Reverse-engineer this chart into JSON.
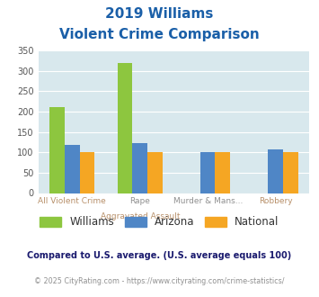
{
  "title_line1": "2019 Williams",
  "title_line2": "Violent Crime Comparison",
  "cat_labels_top": [
    "",
    "Rape",
    "Murder & Mans...",
    ""
  ],
  "cat_labels_bot": [
    "All Violent Crime",
    "Aggravated Assault",
    "",
    "Robbery"
  ],
  "williams": [
    210,
    320,
    0,
    0
  ],
  "arizona": [
    118,
    122,
    100,
    107
  ],
  "national": [
    100,
    100,
    100,
    100
  ],
  "williams_color": "#8dc63f",
  "arizona_color": "#4f86c6",
  "national_color": "#f5a623",
  "ylim": [
    0,
    350
  ],
  "yticks": [
    0,
    50,
    100,
    150,
    200,
    250,
    300,
    350
  ],
  "bg_color": "#d8e8ed",
  "grid_color": "#ffffff",
  "title_color": "#1a5fa8",
  "legend_label_color": "#333333",
  "compare_text": "Compared to U.S. average. (U.S. average equals 100)",
  "compare_color": "#1a1a6e",
  "copyright_text": "© 2025 CityRating.com - https://www.cityrating.com/crime-statistics/",
  "bar_width": 0.22
}
